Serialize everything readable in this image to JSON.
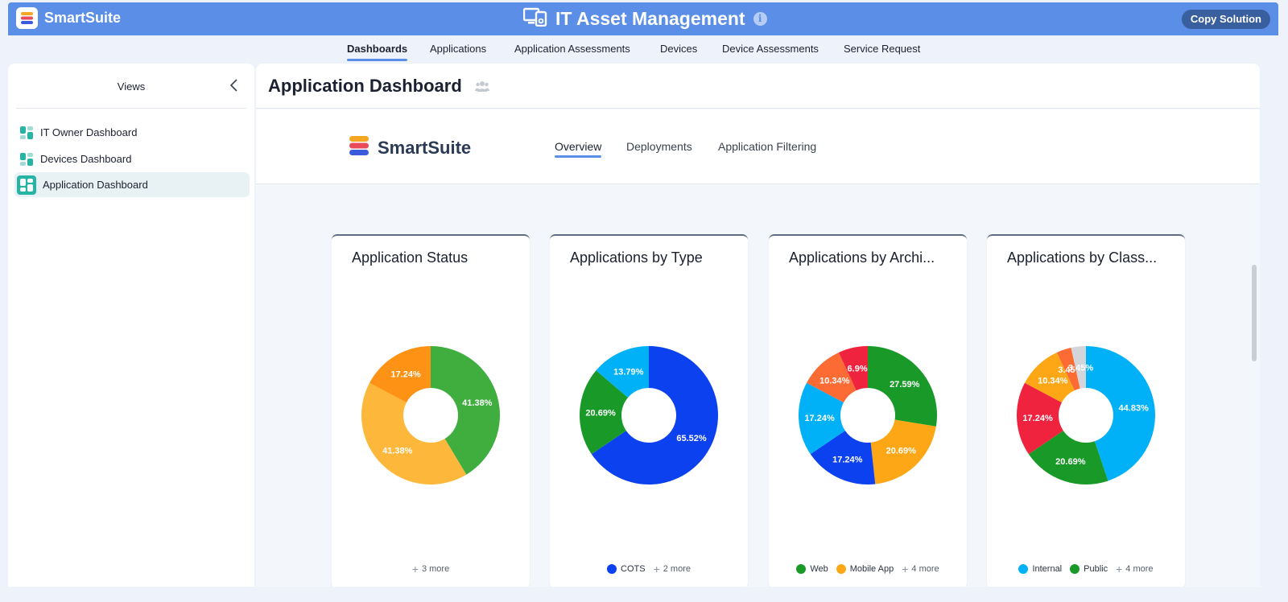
{
  "topbar": {
    "brand": "SmartSuite",
    "title": "IT Asset Management",
    "copy_label": "Copy Solution"
  },
  "nav_tabs": [
    "Dashboards",
    "Applications",
    "Application Assessments",
    "Devices",
    "Device Assessments",
    "Service Request"
  ],
  "sidebar": {
    "title": "Views",
    "items": [
      "IT Owner Dashboard",
      "Devices Dashboard",
      "Application Dashboard"
    ]
  },
  "main": {
    "title": "Application Dashboard",
    "banner_brand": "SmartSuite",
    "banner_tabs": [
      "Overview",
      "Deployments",
      "Application Filtering"
    ]
  },
  "chart_data": [
    {
      "type": "pie",
      "title": "Application Status",
      "slices": [
        {
          "value": 41.38,
          "label": "41.38%",
          "color": "#40ad3f"
        },
        {
          "value": 41.38,
          "label": "41.38%",
          "color": "#fdb73a"
        },
        {
          "value": 17.24,
          "label": "17.24%",
          "color": "#fd9215"
        }
      ],
      "legend": [],
      "more": "3 more"
    },
    {
      "type": "pie",
      "title": "Applications by Type",
      "slices": [
        {
          "value": 65.52,
          "label": "65.52%",
          "color": "#0c41f0"
        },
        {
          "value": 20.69,
          "label": "20.69%",
          "color": "#199a28"
        },
        {
          "value": 13.79,
          "label": "13.79%",
          "color": "#00b1f8"
        }
      ],
      "legend": [
        {
          "name": "COTS",
          "color": "#0c41f0"
        }
      ],
      "more": "2 more"
    },
    {
      "type": "pie",
      "title": "Applications by Archi...",
      "slices": [
        {
          "value": 27.59,
          "label": "27.59%",
          "color": "#199a28"
        },
        {
          "value": 20.69,
          "label": "20.69%",
          "color": "#fda716"
        },
        {
          "value": 17.24,
          "label": "17.24%",
          "color": "#0c41f0"
        },
        {
          "value": 17.24,
          "label": "17.24%",
          "color": "#00b1f8"
        },
        {
          "value": 10.34,
          "label": "10.34%",
          "color": "#fd6b35"
        },
        {
          "value": 6.9,
          "label": "6.9%",
          "color": "#f0233f"
        }
      ],
      "legend": [
        {
          "name": "Web",
          "color": "#199a28"
        },
        {
          "name": "Mobile App",
          "color": "#fda716"
        }
      ],
      "more": "4 more"
    },
    {
      "type": "pie",
      "title": "Applications by Class...",
      "slices": [
        {
          "value": 44.83,
          "label": "44.83%",
          "color": "#00b1f8"
        },
        {
          "value": 20.69,
          "label": "20.69%",
          "color": "#199a28"
        },
        {
          "value": 17.24,
          "label": "17.24%",
          "color": "#f0233f"
        },
        {
          "value": 10.34,
          "label": "10.34%",
          "color": "#fda716"
        },
        {
          "value": 3.45,
          "label": "3.45%",
          "color": "#fd6b35"
        },
        {
          "value": 3.45,
          "label": "3.45%",
          "color": "#d2d5da"
        }
      ],
      "legend": [
        {
          "name": "Internal",
          "color": "#00b1f8"
        },
        {
          "name": "Public",
          "color": "#199a28"
        }
      ],
      "more": "4 more"
    }
  ]
}
